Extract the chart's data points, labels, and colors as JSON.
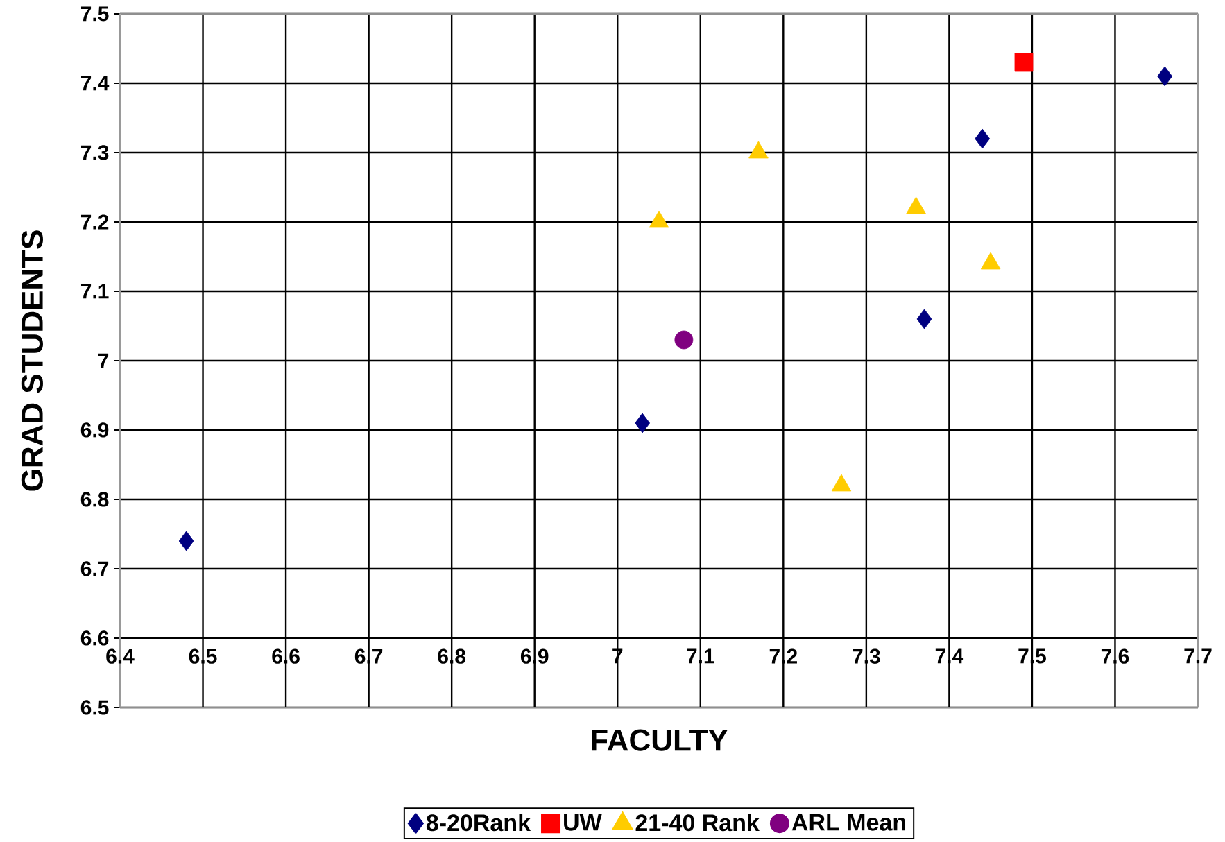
{
  "chart_data": {
    "type": "scatter",
    "xlabel": "FACULTY",
    "ylabel": "GRAD STUDENTS",
    "xlim": [
      6.4,
      7.7
    ],
    "ylim": [
      6.5,
      7.5
    ],
    "xticks": [
      6.4,
      6.5,
      6.6,
      6.7,
      6.8,
      6.9,
      7,
      7.1,
      7.2,
      7.3,
      7.4,
      7.5,
      7.6,
      7.7
    ],
    "yticks": [
      6.5,
      6.6,
      6.7,
      6.8,
      6.9,
      7,
      7.1,
      7.2,
      7.3,
      7.4,
      7.5
    ],
    "grid": true,
    "legend": "bottom",
    "series": [
      {
        "name": "8-20Rank",
        "color": "#000080",
        "marker": "diamond",
        "x": [
          6.48,
          7.03,
          7.37,
          7.44,
          7.66
        ],
        "values": [
          6.74,
          6.91,
          7.06,
          7.32,
          7.41
        ]
      },
      {
        "name": "UW",
        "color": "#ff0000",
        "marker": "square",
        "x": [
          7.49
        ],
        "values": [
          7.43
        ]
      },
      {
        "name": "21-40 Rank",
        "color": "#ffcc00",
        "marker": "triangle",
        "x": [
          7.05,
          7.17,
          7.36,
          7.45,
          7.27
        ],
        "values": [
          7.2,
          7.3,
          7.22,
          7.14,
          6.82
        ]
      },
      {
        "name": "ARL Mean",
        "color": "#800080",
        "marker": "circle",
        "x": [
          7.08
        ],
        "values": [
          7.03
        ]
      }
    ]
  }
}
